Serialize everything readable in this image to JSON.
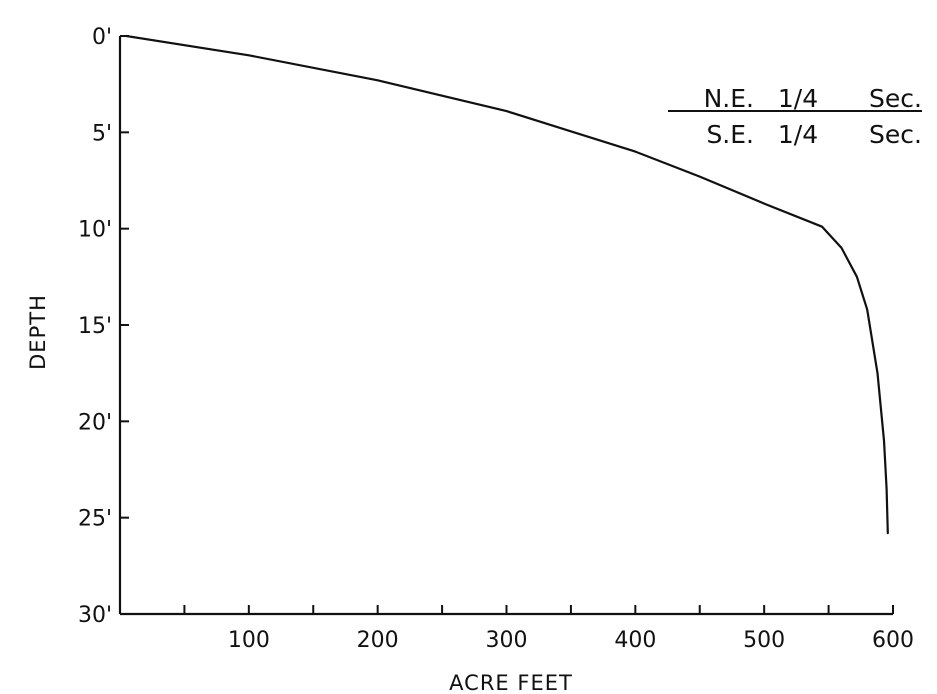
{
  "chart_data": {
    "type": "line",
    "xlabel": "ACRE FEET",
    "ylabel": "DEPTH",
    "xlim": [
      0,
      600
    ],
    "ylim": [
      0,
      30
    ],
    "y_inverted": true,
    "grid": false,
    "x_ticks": [
      {
        "value": 50,
        "label": ""
      },
      {
        "value": 100,
        "label": "100"
      },
      {
        "value": 150,
        "label": ""
      },
      {
        "value": 200,
        "label": "200"
      },
      {
        "value": 250,
        "label": ""
      },
      {
        "value": 300,
        "label": "300"
      },
      {
        "value": 350,
        "label": ""
      },
      {
        "value": 400,
        "label": "400"
      },
      {
        "value": 450,
        "label": ""
      },
      {
        "value": 500,
        "label": "500"
      },
      {
        "value": 550,
        "label": ""
      },
      {
        "value": 600,
        "label": "600"
      }
    ],
    "y_ticks": [
      {
        "value": 0,
        "label": "0'"
      },
      {
        "value": 5,
        "label": "5'"
      },
      {
        "value": 10,
        "label": "10'"
      },
      {
        "value": 15,
        "label": "15'"
      },
      {
        "value": 20,
        "label": "20'"
      },
      {
        "value": 25,
        "label": "25'"
      },
      {
        "value": 30,
        "label": "30'"
      }
    ],
    "legend": {
      "placement": "top-right",
      "rows": [
        [
          "N.E.",
          "1/4",
          "Sec."
        ],
        [
          "S.E.",
          "1/4",
          "Sec."
        ]
      ]
    },
    "series": [
      {
        "points": [
          {
            "x": 5,
            "y": 0
          },
          {
            "x": 100,
            "y": 1.0
          },
          {
            "x": 200,
            "y": 2.3
          },
          {
            "x": 300,
            "y": 3.9
          },
          {
            "x": 400,
            "y": 6.0
          },
          {
            "x": 450,
            "y": 7.3
          },
          {
            "x": 500,
            "y": 8.7
          },
          {
            "x": 545,
            "y": 9.9
          },
          {
            "x": 560,
            "y": 11.0
          },
          {
            "x": 572,
            "y": 12.5
          },
          {
            "x": 580,
            "y": 14.2
          },
          {
            "x": 588,
            "y": 17.5
          },
          {
            "x": 593,
            "y": 21.0
          },
          {
            "x": 595,
            "y": 23.5
          },
          {
            "x": 596,
            "y": 25.8
          }
        ]
      }
    ]
  }
}
